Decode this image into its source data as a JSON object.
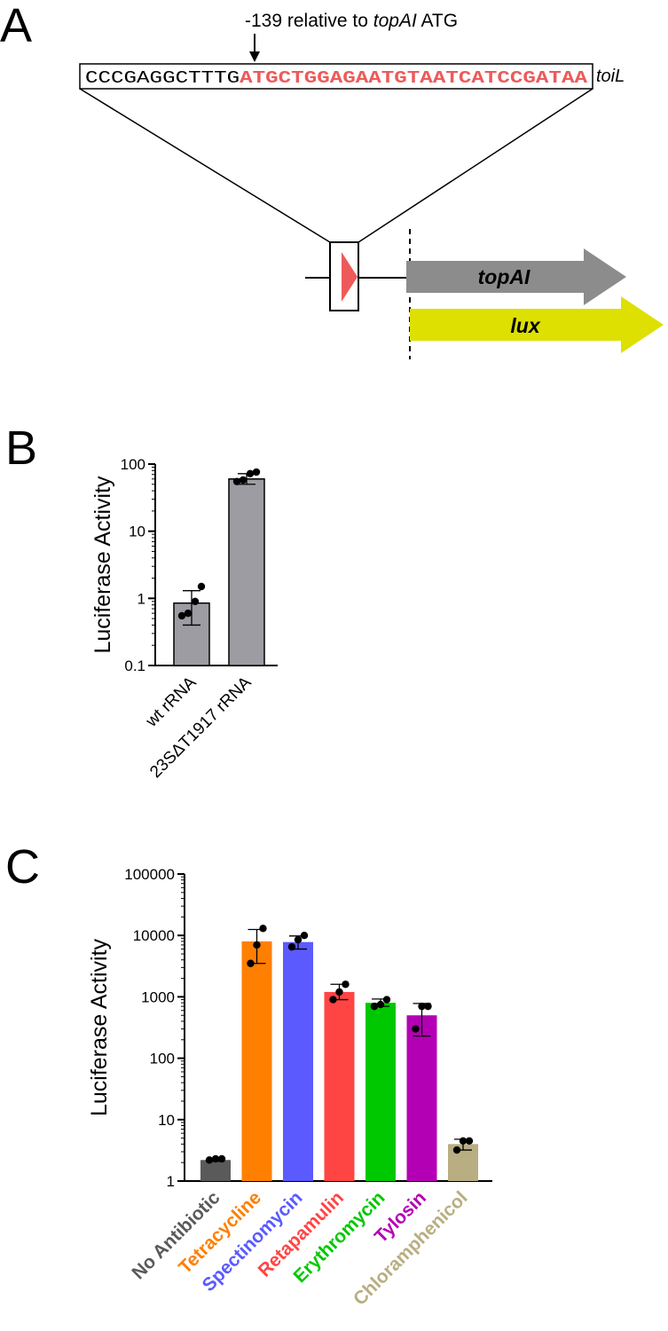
{
  "panel_a": {
    "label": "A",
    "annotation_prefix": "-139 relative to ",
    "annotation_gene": "topAI",
    "annotation_suffix": " ATG",
    "sequence_upstream": "CCCGAGGCTTTG",
    "sequence_toil": "ATGCTGGAGAATGTAATCATCCGATAA",
    "sequence_label": "toiL",
    "gene_topAI": "topAI",
    "gene_lux": "lux",
    "colors": {
      "toil_red": "#ee5a5a",
      "topAI_gray": "#8c8c8c",
      "lux_yellow": "#dde000",
      "triangle_red": "#ee5a5a"
    }
  },
  "panel_b": {
    "label": "B",
    "chart_data": {
      "type": "bar",
      "log_scale": true,
      "ylabel": "Luciferase Activity",
      "ylim": [
        0.1,
        100
      ],
      "yticks": [
        {
          "value": 0.1,
          "label": "0.1"
        },
        {
          "value": 1,
          "label": "1"
        },
        {
          "value": 10,
          "label": "10"
        },
        {
          "value": 100,
          "label": "100"
        }
      ],
      "categories": [
        "wt rRNA",
        "23SΔT1917 rRNA"
      ],
      "values": [
        0.85,
        60
      ],
      "error_low": [
        0.4,
        50
      ],
      "error_high": [
        1.3,
        72
      ],
      "points": [
        [
          0.55,
          0.6,
          0.9,
          1.5
        ],
        [
          55,
          58,
          72,
          76
        ]
      ],
      "colors": [
        "#9c9ca2",
        "#9c9ca2"
      ]
    }
  },
  "panel_c": {
    "label": "C",
    "chart_data": {
      "type": "bar",
      "log_scale": true,
      "ylabel": "Luciferase Activity",
      "ylim": [
        1,
        100000
      ],
      "yticks": [
        {
          "value": 1,
          "label": "1"
        },
        {
          "value": 10,
          "label": "10"
        },
        {
          "value": 100,
          "label": "100"
        },
        {
          "value": 1000,
          "label": "1000"
        },
        {
          "value": 10000,
          "label": "10000"
        },
        {
          "value": 100000,
          "label": "100000"
        }
      ],
      "categories": [
        "No Antibiotic",
        "Tetracycline",
        "Spectinomycin",
        "Retapamulin",
        "Erythromycin",
        "Tylosin",
        "Chloramphenicol"
      ],
      "values": [
        2.2,
        8000,
        7800,
        1200,
        800,
        500,
        4
      ],
      "error_low": [
        2.1,
        3500,
        6000,
        900,
        700,
        230,
        3.2
      ],
      "error_high": [
        2.3,
        12500,
        9800,
        1600,
        920,
        780,
        4.8
      ],
      "points": [
        [
          2.2,
          2.3,
          2.3
        ],
        [
          3500,
          7000,
          13000
        ],
        [
          6500,
          8500,
          10000
        ],
        [
          900,
          1200,
          1600
        ],
        [
          700,
          750,
          900
        ],
        [
          300,
          700,
          700
        ],
        [
          3.2,
          4.5,
          4.5
        ]
      ],
      "colors": [
        "#5a5a5a",
        "#ff7f00",
        "#5a5aff",
        "#ff4444",
        "#00c800",
        "#b400b4",
        "#b8ae82"
      ]
    }
  }
}
